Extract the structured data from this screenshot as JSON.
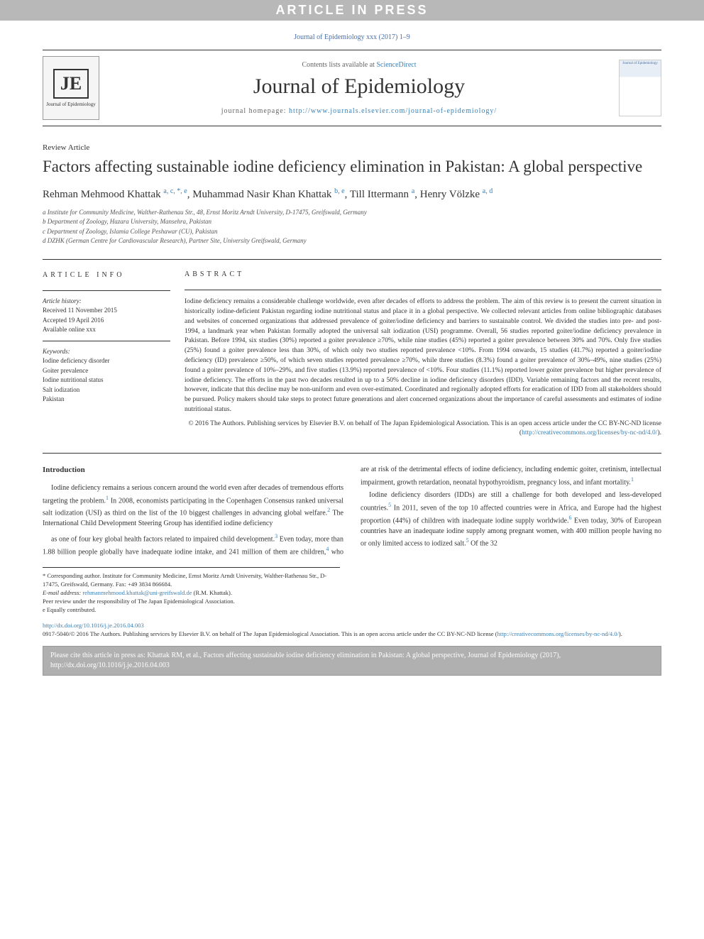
{
  "banner": "ARTICLE IN PRESS",
  "citation_top": "Journal of Epidemiology xxx (2017) 1–9",
  "header": {
    "contents_prefix": "Contents lists available at ",
    "contents_link": "ScienceDirect",
    "journal_name": "Journal of Epidemiology",
    "homepage_prefix": "journal homepage: ",
    "homepage_url": "http://www.journals.elsevier.com/journal-of-epidemiology/",
    "logo_text": "JE",
    "logo_sub": "Journal of Epidemiology",
    "cover_text": "Journal of Epidemiology"
  },
  "article_type": "Review Article",
  "title": "Factors affecting sustainable iodine deficiency elimination in Pakistan: A global perspective",
  "authors_html": "Rehman Mehmood Khattak <sup>a, c, *, e</sup>, Muhammad Nasir Khan Khattak <sup>b, e</sup>, Till Ittermann <sup>a</sup>, Henry Völzke <sup>a, d</sup>",
  "affiliations": [
    "a Institute for Community Medicine, Walther-Rathenau Str., 48, Ernst Moritz Arndt University, D-17475, Greifswald, Germany",
    "b Department of Zoology, Hazara University, Mansehra, Pakistan",
    "c Department of Zoology, Islamia College Peshawar (CU), Pakistan",
    "d DZHK (German Centre for Cardiovascular Research), Partner Site, University Greifswald, Germany"
  ],
  "info": {
    "heading": "ARTICLE INFO",
    "history_title": "Article history:",
    "received": "Received 11 November 2015",
    "accepted": "Accepted 19 April 2016",
    "available": "Available online xxx",
    "keywords_title": "Keywords:",
    "keywords": [
      "Iodine deficiency disorder",
      "Goiter prevalence",
      "Iodine nutritional status",
      "Salt iodization",
      "Pakistan"
    ]
  },
  "abstract": {
    "heading": "ABSTRACT",
    "text": "Iodine deficiency remains a considerable challenge worldwide, even after decades of efforts to address the problem. The aim of this review is to present the current situation in historically iodine-deficient Pakistan regarding iodine nutritional status and place it in a global perspective. We collected relevant articles from online bibliographic databases and websites of concerned organizations that addressed prevalence of goiter/iodine deficiency and barriers to sustainable control. We divided the studies into pre- and post-1994, a landmark year when Pakistan formally adopted the universal salt iodization (USI) programme. Overall, 56 studies reported goiter/iodine deficiency prevalence in Pakistan. Before 1994, six studies (30%) reported a goiter prevalence ≥70%, while nine studies (45%) reported a goiter prevalence between 30% and 70%. Only five studies (25%) found a goiter prevalence less than 30%, of which only two studies reported prevalence <10%. From 1994 onwards, 15 studies (41.7%) reported a goiter/iodine deficiency (ID) prevalence ≥50%, of which seven studies reported prevalence ≥70%, while three studies (8.3%) found a goiter prevalence of 30%–49%, nine studies (25%) found a goiter prevalence of 10%–29%, and five studies (13.9%) reported prevalence of <10%. Four studies (11.1%) reported lower goiter prevalence but higher prevalence of iodine deficiency. The efforts in the past two decades resulted in up to a 50% decline in iodine deficiency disorders (IDD). Variable remaining factors and the recent results, however, indicate that this decline may be non-uniform and even over-estimated. Coordinated and regionally adopted efforts for eradication of IDD from all stakeholders should be pursued. Policy makers should take steps to protect future generations and alert concerned organizations about the importance of careful assessments and estimates of iodine nutritional status.",
    "copyright": "© 2016 The Authors. Publishing services by Elsevier B.V. on behalf of The Japan Epidemiological Association. This is an open access article under the CC BY-NC-ND license (",
    "cc_link": "http://creativecommons.org/licenses/by-nc-nd/4.0/",
    "cc_close": ")."
  },
  "body": {
    "intro_heading": "Introduction",
    "p1": "Iodine deficiency remains a serious concern around the world even after decades of tremendous efforts targeting the problem.<sup>1</sup> In 2008, economists participating in the Copenhagen Consensus ranked universal salt iodization (USI) as third on the list of the 10 biggest challenges in advancing global welfare.<sup>2</sup> The International Child Development Steering Group has identified iodine deficiency",
    "p2": "as one of four key global health factors related to impaired child development.<sup>3</sup> Even today, more than 1.88 billion people globally have inadequate iodine intake, and 241 million of them are children,<sup>4</sup> who are at risk of the detrimental effects of iodine deficiency, including endemic goiter, cretinism, intellectual impairment, growth retardation, neonatal hypothyroidism, pregnancy loss, and infant mortality.<sup>1</sup>",
    "p3": "Iodine deficiency disorders (IDDs) are still a challenge for both developed and less-developed countries.<sup>5</sup> In 2011, seven of the top 10 affected countries were in Africa, and Europe had the highest proportion (44%) of children with inadequate iodine supply worldwide.<sup>6</sup> Even today, 30% of European countries have an inadequate iodine supply among pregnant women, with 400 million people having no or only limited access to iodized salt.<sup>5</sup> Of the 32"
  },
  "footnotes": {
    "corresponding": "* Corresponding author. Institute for Community Medicine, Ernst Moritz Arndt University, Walther-Rathenau Str., D-17475, Greifswald, Germany. Fax: +49 3834 866684.",
    "email_label": "E-mail address: ",
    "email": "rehmanmehmood.khattak@uni-greifswald.de",
    "email_suffix": " (R.M. Khattak).",
    "peer": "Peer review under the responsibility of The Japan Epidemiological Association.",
    "equal": "e Equally contributed."
  },
  "doi": {
    "url": "http://dx.doi.org/10.1016/j.je.2016.04.003",
    "line": "0917-5040/© 2016 The Authors. Publishing services by Elsevier B.V. on behalf of The Japan Epidemiological Association. This is an open access article under the CC BY-NC-ND license (",
    "cc": "http://creativecommons.org/licenses/by-nc-nd/4.0/",
    "close": ")."
  },
  "citebox": "Please cite this article in press as: Khattak RM, et al., Factors affecting sustainable iodine deficiency elimination in Pakistan: A global perspective, Journal of Epidemiology (2017), http://dx.doi.org/10.1016/j.je.2016.04.003",
  "colors": {
    "banner_bg": "#b8b8b8",
    "link": "#3c7fb1",
    "citebox_bg": "#b0b0b0"
  }
}
